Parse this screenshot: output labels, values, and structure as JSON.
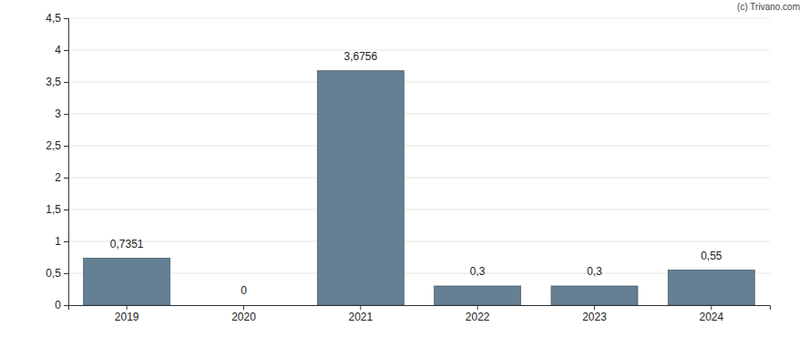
{
  "chart_data": {
    "type": "bar",
    "annotations": [
      "(c) Trivano.com"
    ],
    "categories": [
      "2019",
      "2020",
      "2021",
      "2022",
      "2023",
      "2024"
    ],
    "values": [
      0.7351,
      0,
      3.6756,
      0.3,
      0.3,
      0.55
    ],
    "value_labels": [
      "0,7351",
      "0",
      "3,6756",
      "0,3",
      "0,3",
      "0,55"
    ],
    "data_labels": true,
    "color": "#657f93",
    "ylim": [
      0,
      4.5
    ],
    "yticks": [
      0,
      {
        "value": 0.5,
        "label": "0,5"
      },
      1,
      {
        "value": 1.5,
        "label": "1,5"
      },
      2,
      {
        "value": 2.5,
        "label": "2,5"
      },
      3,
      {
        "value": 3.5,
        "label": "3,5"
      },
      4,
      {
        "value": 4.5,
        "label": "4,5"
      }
    ],
    "grid": true
  }
}
